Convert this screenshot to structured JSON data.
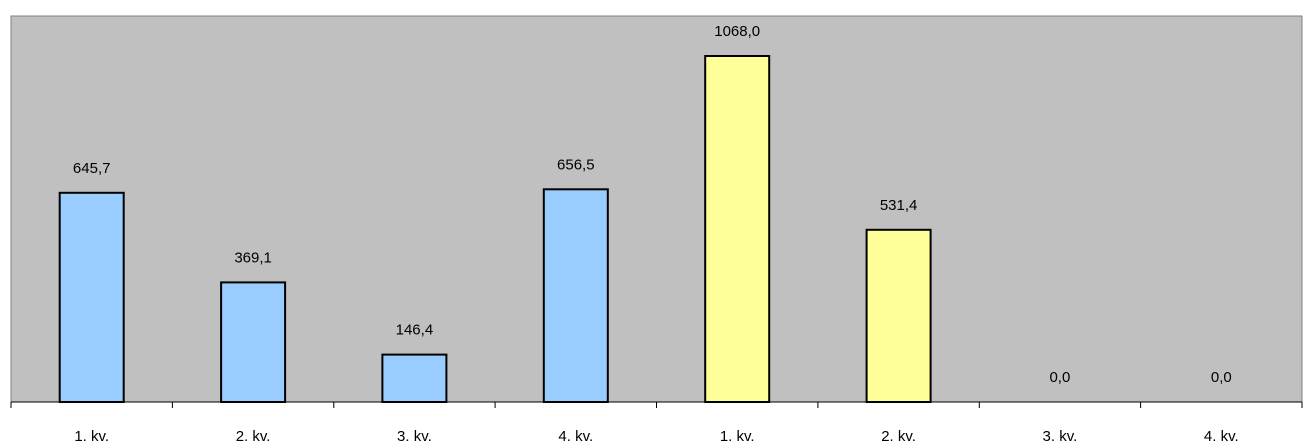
{
  "chart_data": {
    "type": "bar",
    "categories": [
      "1. kv.",
      "2. kv.",
      "3. kv.",
      "4. kv.",
      "1. kv.",
      "2. kv.",
      "3. kv.",
      "4. kv."
    ],
    "values": [
      645.7,
      369.1,
      146.4,
      656.5,
      1068.0,
      531.4,
      0.0,
      0.0
    ],
    "value_labels": [
      "645,7",
      "369,1",
      "146,4",
      "656,5",
      "1068,0",
      "531,4",
      "0,0",
      "0,0"
    ],
    "groups": [
      {
        "categories": [
          0,
          1,
          2,
          3
        ],
        "color": "#99ccff"
      },
      {
        "categories": [
          4,
          5,
          6,
          7
        ],
        "color": "#ffff99"
      }
    ],
    "title": "",
    "xlabel": "",
    "ylabel": "",
    "ylim": [
      0,
      1200
    ],
    "grid": false,
    "legend": "none",
    "plot_background": "#c0c0c0",
    "bar_border_color": "#000000"
  }
}
